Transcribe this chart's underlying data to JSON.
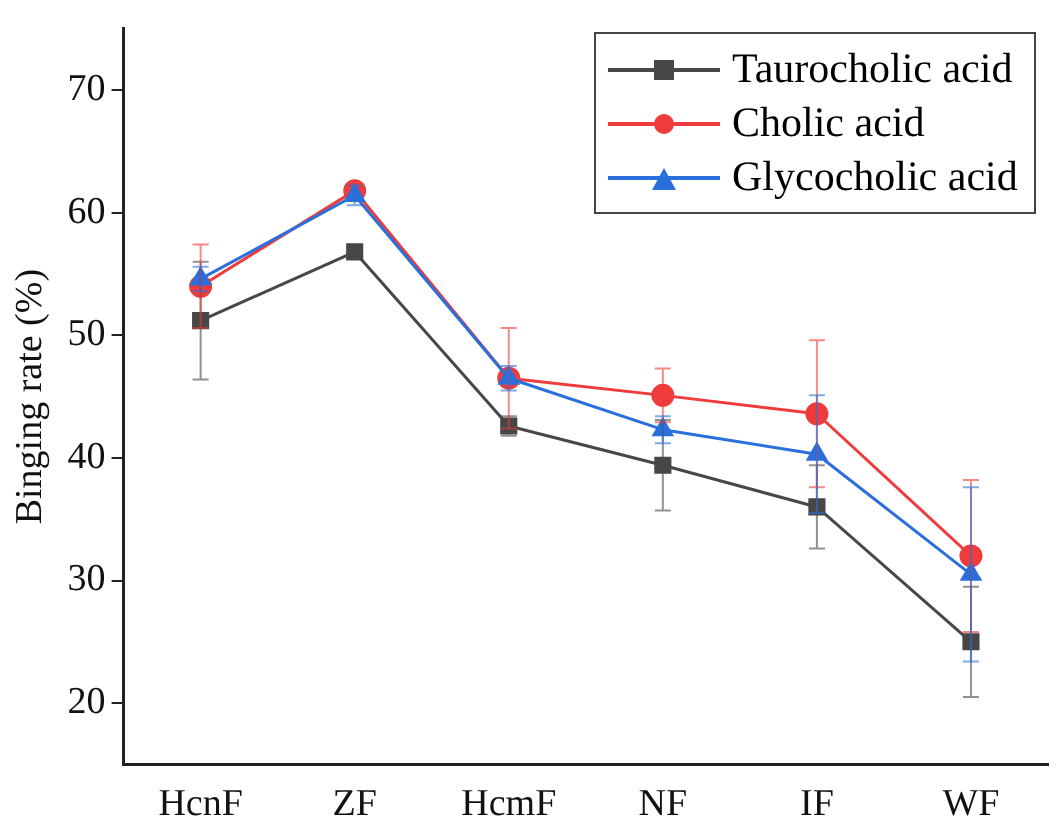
{
  "chart_data": {
    "type": "line",
    "ylabel": "Binging rate (%)",
    "categories": [
      "HcnF",
      "ZF",
      "HcmF",
      "NF",
      "IF",
      "WF"
    ],
    "ylim": [
      15,
      75
    ],
    "yticks": [
      20,
      30,
      40,
      50,
      60,
      70
    ],
    "grid": false,
    "legend": "top right",
    "line_style": "solid",
    "series": [
      {
        "name": "Taurocholic acid",
        "color": "#474747",
        "marker": "square",
        "values": [
          51.2,
          56.8,
          42.6,
          39.4,
          36.0,
          25.0
        ],
        "errors": [
          4.8,
          null,
          0.8,
          3.7,
          3.4,
          4.5
        ]
      },
      {
        "name": "Cholic acid",
        "color": "#ef3b3b",
        "marker": "circle",
        "values": [
          54.0,
          61.8,
          46.5,
          45.1,
          43.6,
          32.0
        ],
        "errors": [
          3.4,
          null,
          4.1,
          2.2,
          6.0,
          6.2
        ]
      },
      {
        "name": "Glycocholic acid",
        "color": "#2a6fdb",
        "marker": "triangle",
        "values": [
          54.6,
          61.4,
          46.5,
          42.3,
          40.3,
          30.5
        ],
        "errors": [
          1.0,
          0.8,
          1.0,
          1.1,
          4.8,
          7.1
        ]
      }
    ]
  }
}
